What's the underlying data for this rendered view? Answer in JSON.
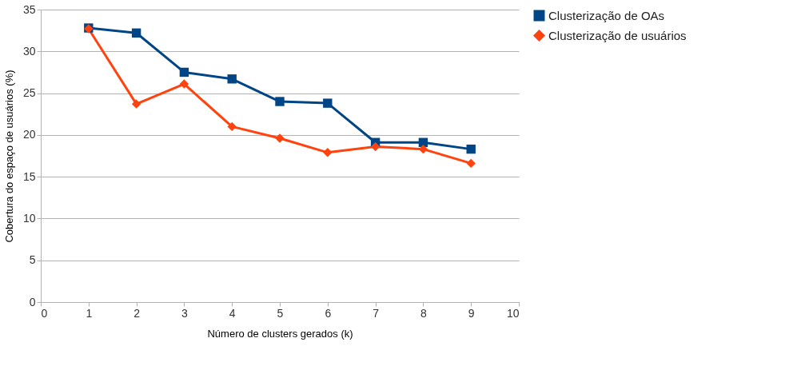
{
  "chart_data": {
    "type": "line",
    "xlabel": "Número de clusters gerados (k)",
    "ylabel": "Cobertura do espaço de usuários (%)",
    "x": [
      1,
      2,
      3,
      4,
      5,
      6,
      7,
      8,
      9
    ],
    "series": [
      {
        "name": "Clusterização de OAs",
        "color": "#004586",
        "marker": "square",
        "values": [
          32.8,
          32.2,
          27.5,
          26.7,
          24.0,
          23.8,
          19.1,
          19.1,
          18.3
        ]
      },
      {
        "name": "Clusterização de usuários",
        "color": "#ff420e",
        "marker": "diamond",
        "values": [
          32.7,
          23.7,
          26.1,
          21.0,
          19.6,
          17.9,
          18.6,
          18.3,
          16.6
        ]
      }
    ],
    "xlim": [
      0,
      10
    ],
    "xticks": [
      0,
      1,
      2,
      3,
      4,
      5,
      6,
      7,
      8,
      9,
      10
    ],
    "ylim": [
      0,
      35
    ],
    "yticks": [
      0,
      5,
      10,
      15,
      20,
      25,
      30,
      35
    ],
    "grid": "y",
    "legend": "right",
    "line_style": "solid"
  }
}
